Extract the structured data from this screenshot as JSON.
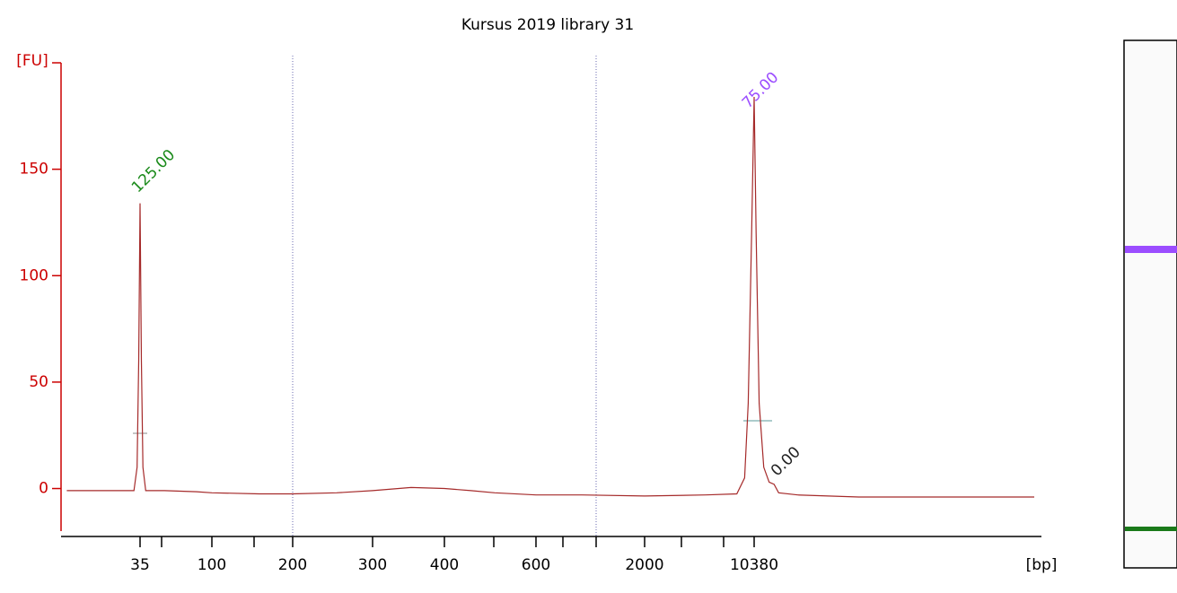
{
  "chart_data": {
    "type": "line",
    "title": "Kursus 2019 library 31",
    "y_label": "[FU]",
    "x_label": "[bp]",
    "log_x": true,
    "ylim": [
      -20,
      200
    ],
    "yticks": [
      0,
      50,
      100,
      150
    ],
    "xticks": [
      35,
      100,
      200,
      300,
      400,
      600,
      2000,
      10380
    ],
    "axis_color": "#cc0000",
    "series": [
      {
        "name": "Kursus 2019 library 31",
        "color": "#a52a2a",
        "x": [
          12,
          20,
          30,
          32,
          33.5,
          34.3,
          35,
          35.7,
          36.5,
          38,
          50,
          80,
          100,
          150,
          200,
          250,
          300,
          350,
          400,
          450,
          500,
          600,
          700,
          1000,
          2000,
          5000,
          8000,
          9000,
          9500,
          10000,
          10380,
          10700,
          11200,
          12000,
          13000,
          14000,
          15000,
          20000,
          50000,
          200000,
          700000
        ],
        "values": [
          -1,
          -1,
          -1,
          -1,
          10,
          60,
          134,
          60,
          10,
          -1,
          -1,
          -1.5,
          -2,
          -2.5,
          -2.5,
          -2,
          -1,
          0.5,
          0,
          -1,
          -2,
          -3,
          -3,
          -3,
          -3.5,
          -3,
          -2.5,
          5,
          40,
          120,
          184,
          120,
          40,
          10,
          3,
          2,
          -2,
          -3,
          -4,
          -4,
          -4
        ]
      }
    ],
    "annotations": [
      {
        "text": "125.00",
        "color": "#1a8a1a"
      },
      {
        "text": "75.00",
        "color": "#9b4dff"
      },
      {
        "text": "0.00",
        "color": "#222222"
      }
    ]
  }
}
